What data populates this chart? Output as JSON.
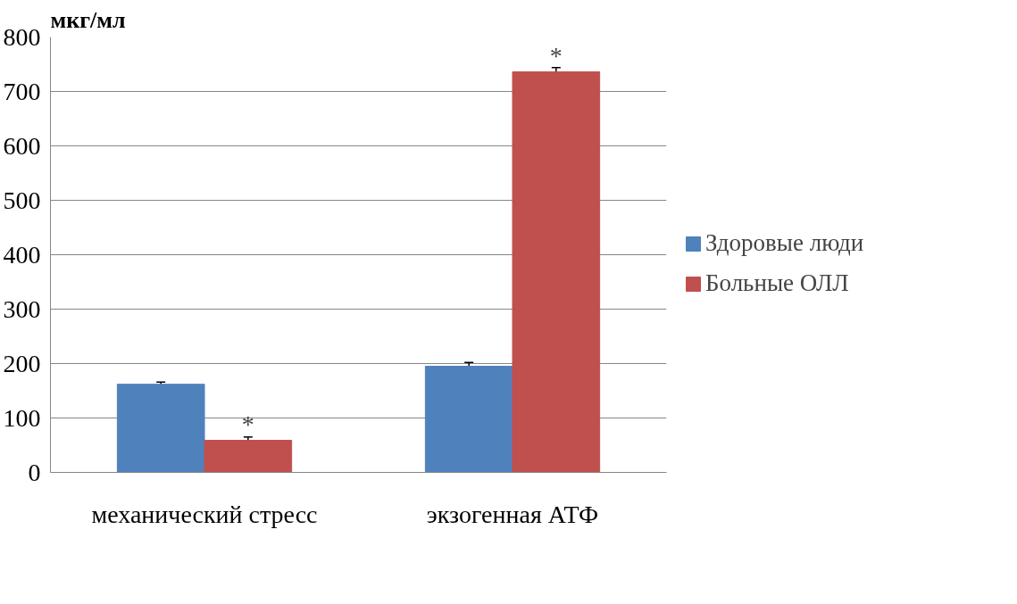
{
  "chart_data": {
    "type": "bar",
    "ylabel": "мкг/мл",
    "categories": [
      "механический стресс",
      "экзогенная АТФ"
    ],
    "series": [
      {
        "name": "Здоровые люди",
        "color": "#4f81bd",
        "values": [
          162,
          195
        ],
        "errors": [
          4,
          7
        ]
      },
      {
        "name": "Больные ОЛЛ",
        "color": "#c0504d",
        "values": [
          59,
          736
        ],
        "errors": [
          6,
          8
        ]
      }
    ],
    "ylim": [
      0,
      800
    ],
    "yticks": [
      0,
      100,
      200,
      300,
      400,
      500,
      600,
      700,
      800
    ],
    "grid": "y",
    "legend": "right",
    "annotations": [
      {
        "text": "*",
        "x": "механический стресс",
        "y": 59
      },
      {
        "text": "*",
        "x": "экзогенная АТФ",
        "y": 736
      }
    ]
  }
}
